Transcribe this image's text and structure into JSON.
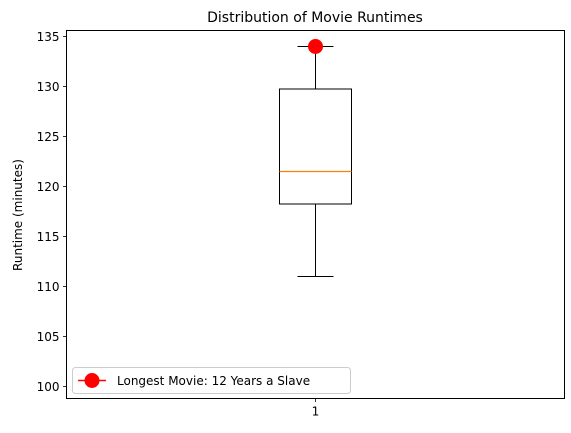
{
  "chart_data": {
    "type": "box",
    "title": "Distribution of Movie Runtimes",
    "xlabel": "",
    "ylabel": "Runtime (minutes)",
    "ylim": [
      98.8,
      135.6
    ],
    "xlim": [
      0.5,
      1.5
    ],
    "categories": [
      "1"
    ],
    "yticks": [
      100,
      105,
      110,
      115,
      120,
      125,
      130,
      135
    ],
    "grid": false,
    "box": {
      "position": 1,
      "whisker_low": 111,
      "q1": 118.25,
      "median": 121.5,
      "q3": 129.75,
      "whisker_high": 134
    },
    "highlight": {
      "x": 1,
      "y": 134,
      "label": "Longest Movie: 12 Years a Slave"
    },
    "legend_placement": "lower-left",
    "colors": {
      "box": "#000000",
      "median": "#ff7f0e",
      "highlight": "#ff0000"
    }
  }
}
